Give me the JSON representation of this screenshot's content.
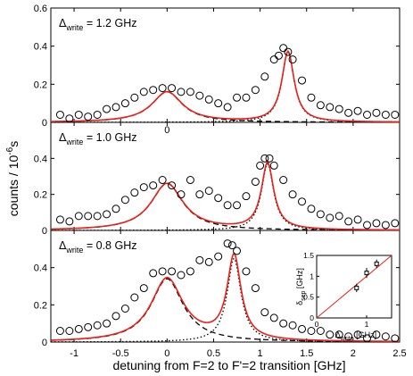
{
  "chart_data": {
    "type": "scatter",
    "xlabel": "detuning from F=2 to F'=2 transition [GHz]",
    "ylabel_main": "counts / 10",
    "ylabel_exp": "-6",
    "ylabel_unit": "s",
    "xlim": [
      -1.25,
      2.5
    ],
    "x_ticks": [
      "-1",
      "-0.5",
      "0",
      "0.5",
      "1",
      "1.5",
      "2",
      "2.5"
    ],
    "panels": [
      {
        "label_delta": "Δ",
        "label_sub": "write",
        "label_value": " = 1.2 GHz",
        "ylim": [
          0,
          0.6
        ],
        "y_ticks": [
          "0",
          "0.2",
          "0.4",
          "0.6"
        ],
        "note": "0",
        "peak_left": {
          "center": 0.0,
          "amplitude": 0.16,
          "width": 0.4
        },
        "peak_right": {
          "center": 1.3,
          "amplitude": 0.37,
          "width": 0.16
        },
        "data_x": [
          -1.15,
          -1.05,
          -0.95,
          -0.85,
          -0.75,
          -0.65,
          -0.55,
          -0.45,
          -0.35,
          -0.25,
          -0.15,
          -0.05,
          0.05,
          0.15,
          0.25,
          0.35,
          0.45,
          0.55,
          0.65,
          0.75,
          0.85,
          0.95,
          1.05,
          1.15,
          1.2,
          1.25,
          1.3,
          1.35,
          1.45,
          1.55,
          1.65,
          1.75,
          1.85,
          1.95,
          2.05,
          2.15,
          2.25,
          2.35,
          2.45
        ],
        "data_y": [
          0.04,
          0.02,
          0.04,
          0.03,
          0.04,
          0.07,
          0.08,
          0.1,
          0.13,
          0.16,
          0.17,
          0.18,
          0.18,
          0.16,
          0.16,
          0.14,
          0.12,
          0.1,
          0.08,
          0.13,
          0.13,
          0.17,
          0.24,
          0.33,
          0.35,
          0.39,
          0.37,
          0.33,
          0.22,
          0.13,
          0.09,
          0.08,
          0.07,
          0.05,
          0.06,
          0.04,
          0.05,
          0.04,
          0.04
        ]
      },
      {
        "label_delta": "Δ",
        "label_sub": "write",
        "label_value": " = 1.0 GHz",
        "ylim": [
          0,
          0.6
        ],
        "y_ticks": [
          "0",
          "0.2",
          "0.4"
        ],
        "note": "",
        "peak_left": {
          "center": 0.0,
          "amplitude": 0.26,
          "width": 0.42
        },
        "peak_right": {
          "center": 1.08,
          "amplitude": 0.37,
          "width": 0.16
        },
        "data_x": [
          -1.15,
          -1.05,
          -0.95,
          -0.85,
          -0.75,
          -0.65,
          -0.55,
          -0.45,
          -0.35,
          -0.25,
          -0.15,
          -0.05,
          0.05,
          0.15,
          0.25,
          0.35,
          0.45,
          0.55,
          0.65,
          0.75,
          0.85,
          0.95,
          1.0,
          1.05,
          1.1,
          1.15,
          1.25,
          1.35,
          1.45,
          1.55,
          1.65,
          1.75,
          1.85,
          1.95,
          2.05,
          2.15,
          2.25,
          2.35,
          2.45
        ],
        "data_y": [
          0.06,
          0.05,
          0.08,
          0.08,
          0.08,
          0.09,
          0.12,
          0.17,
          0.21,
          0.24,
          0.25,
          0.28,
          0.25,
          0.2,
          0.28,
          0.2,
          0.22,
          0.18,
          0.14,
          0.14,
          0.19,
          0.27,
          0.36,
          0.4,
          0.4,
          0.36,
          0.28,
          0.2,
          0.16,
          0.12,
          0.09,
          0.07,
          0.08,
          0.05,
          0.06,
          0.03,
          0.04,
          0.03,
          0.04
        ]
      },
      {
        "label_delta": "Δ",
        "label_sub": "write",
        "label_value": " = 0.8  GHz",
        "ylim": [
          0,
          0.6
        ],
        "y_ticks": [
          "0",
          "0.2",
          "0.4"
        ],
        "note": "",
        "peak_left": {
          "center": 0.0,
          "amplitude": 0.34,
          "width": 0.42
        },
        "peak_right": {
          "center": 0.72,
          "amplitude": 0.45,
          "width": 0.18
        },
        "data_x": [
          -1.15,
          -1.05,
          -0.95,
          -0.85,
          -0.75,
          -0.65,
          -0.55,
          -0.45,
          -0.35,
          -0.25,
          -0.15,
          -0.05,
          0.05,
          0.15,
          0.25,
          0.35,
          0.45,
          0.55,
          0.65,
          0.7,
          0.75,
          0.85,
          0.95,
          1.05,
          1.15,
          1.25,
          1.35,
          1.45,
          1.55,
          1.65,
          1.75,
          1.85,
          1.95,
          2.05,
          2.15,
          2.25,
          2.35,
          2.45
        ],
        "data_y": [
          0.06,
          0.06,
          0.07,
          0.08,
          0.09,
          0.1,
          0.14,
          0.18,
          0.24,
          0.29,
          0.37,
          0.38,
          0.38,
          0.36,
          0.38,
          0.44,
          0.43,
          0.46,
          0.53,
          0.52,
          0.49,
          0.38,
          0.29,
          0.16,
          0.13,
          0.1,
          0.09,
          0.07,
          0.06,
          0.06,
          0.04,
          0.04,
          0.03,
          0.04,
          0.02,
          0.04,
          0.03,
          0.02
        ]
      }
    ],
    "inset": {
      "xlabel_delta": "Δ",
      "xlabel_sub": "write",
      "xlabel_unit": " [GHz]",
      "ylabel_delta": "δ",
      "ylabel_sub": "sep",
      "ylabel_unit": " [GHz]",
      "xlim": [
        0,
        1.5
      ],
      "ylim": [
        0,
        1.5
      ],
      "x_ticks": [
        "0",
        "1"
      ],
      "y_ticks": [
        "0",
        "0.5",
        "1",
        "1.5"
      ],
      "points": [
        {
          "x": 0.8,
          "y": 0.72,
          "err": 0.1
        },
        {
          "x": 1.0,
          "y": 1.08,
          "err": 0.12
        },
        {
          "x": 1.2,
          "y": 1.3,
          "err": 0.1
        }
      ],
      "line": [
        [
          0,
          0
        ],
        [
          1.5,
          1.5
        ]
      ]
    },
    "colors": {
      "fit": "#e8201a",
      "inset_line": "#e8201a",
      "marker": "#000000",
      "component": "#000000"
    }
  }
}
